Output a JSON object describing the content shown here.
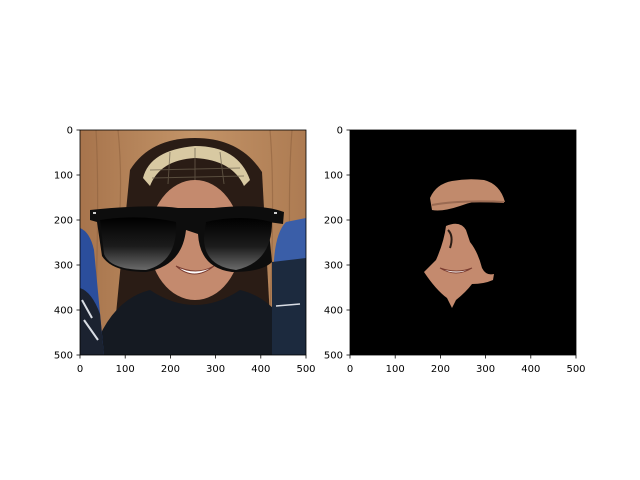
{
  "chart_data": [
    {
      "type": "image",
      "content": "photo of a smiling woman wearing a plaid headband and a pair of overlaid black sunglasses",
      "xlim": [
        0,
        500
      ],
      "ylim": [
        500,
        0
      ],
      "xticks": [
        0,
        100,
        200,
        300,
        400,
        500
      ],
      "yticks": [
        0,
        100,
        200,
        300,
        400,
        500
      ],
      "xtick_labels": [
        "0",
        "100",
        "200",
        "300",
        "400",
        "500"
      ],
      "ytick_labels": [
        "0",
        "100",
        "200",
        "300",
        "400",
        "500"
      ],
      "title": "",
      "xlabel": "",
      "ylabel": ""
    },
    {
      "type": "image",
      "content": "black background showing only segmented face regions: forehead patch and lower face",
      "xlim": [
        0,
        500
      ],
      "ylim": [
        500,
        0
      ],
      "xticks": [
        0,
        100,
        200,
        300,
        400,
        500
      ],
      "yticks": [
        0,
        100,
        200,
        300,
        400,
        500
      ],
      "xtick_labels": [
        "0",
        "100",
        "200",
        "300",
        "400",
        "500"
      ],
      "ytick_labels": [
        "0",
        "100",
        "200",
        "300",
        "400",
        "500"
      ],
      "title": "",
      "xlabel": "",
      "ylabel": ""
    }
  ],
  "colors": {
    "background": "#ffffff",
    "axes_edge": "#000000",
    "wood": "#b9865a",
    "hair": "#2a1c15",
    "skin": "#c48a6e",
    "shirt": "#151a22",
    "bottle": "#3a5ea8",
    "lens": "#111111",
    "mask_bg": "#000000"
  }
}
